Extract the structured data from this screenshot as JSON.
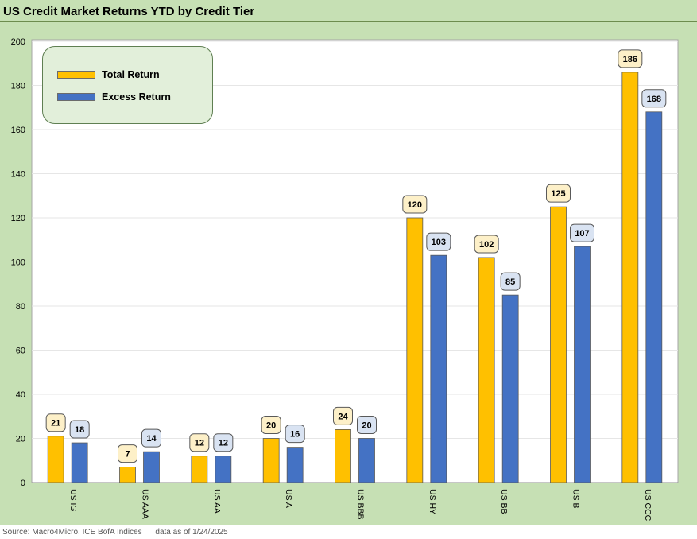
{
  "title": "US Credit Market Returns YTD by Credit Tier",
  "source": {
    "text": "Source: Macro4Micro, ICE BofA Indices",
    "date_text": "data as of 1/24/2025"
  },
  "colors": {
    "frame_bg": "#c6e0b4",
    "plot_bg": "#ffffff",
    "total_return": "#ffc000",
    "excess_return": "#4472c4",
    "total_label_bg": "#fdf0c8",
    "excess_label_bg": "#d9e3f2",
    "gridline": "#e6e6e6"
  },
  "chart_data": {
    "type": "bar",
    "title": "US Credit Market Returns YTD by Credit Tier",
    "xlabel": "",
    "ylabel": "",
    "ylim": [
      0,
      200
    ],
    "yticks": [
      0,
      20,
      40,
      60,
      80,
      100,
      120,
      140,
      160,
      180,
      200
    ],
    "grid": true,
    "legend_position": "top-left",
    "categories": [
      "US IG",
      "US AAA",
      "US AA",
      "US A",
      "US BBB",
      "US HY",
      "US BB",
      "US B",
      "US CCC"
    ],
    "series": [
      {
        "name": "Total Return",
        "values": [
          21,
          7,
          12,
          20,
          24,
          120,
          102,
          125,
          186
        ]
      },
      {
        "name": "Excess Return",
        "values": [
          18,
          14,
          12,
          16,
          20,
          103,
          85,
          107,
          168
        ]
      }
    ]
  }
}
